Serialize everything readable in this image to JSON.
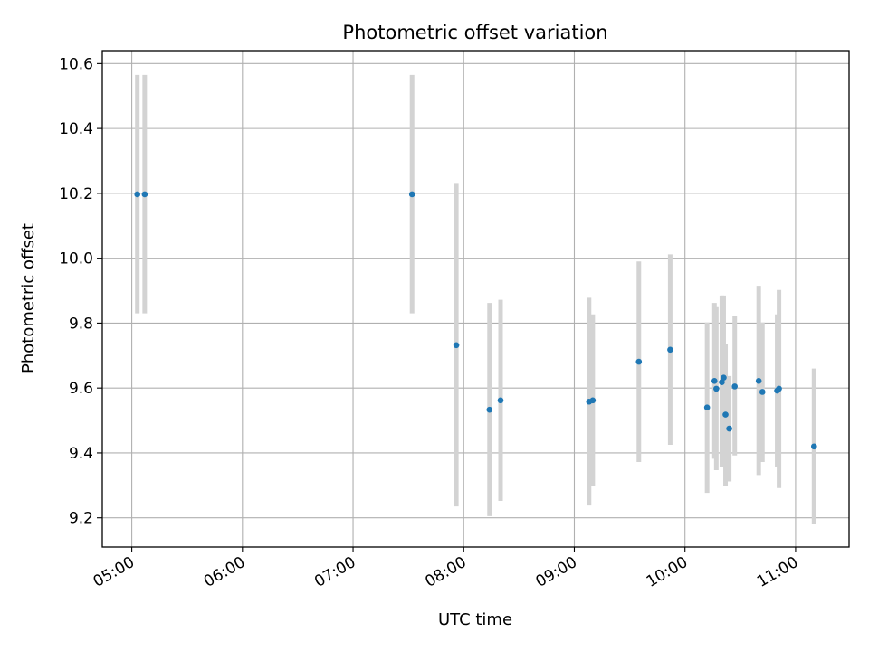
{
  "chart_data": {
    "type": "scatter",
    "title": "Photometric offset variation",
    "xlabel": "UTC time",
    "ylabel": "Photometric offset",
    "x_ticks": [
      "05:00",
      "06:00",
      "07:00",
      "08:00",
      "09:00",
      "10:00",
      "11:00"
    ],
    "y_ticks": [
      "9.2",
      "9.4",
      "9.6",
      "9.8",
      "10.0",
      "10.2",
      "10.4",
      "10.6"
    ],
    "xlim": [
      "04:44",
      "11:29"
    ],
    "ylim": [
      9.11,
      10.64
    ],
    "grid": true,
    "point_color": "#1f77b4",
    "errorbar_color": "#d3d3d3",
    "points": [
      {
        "x": "05:03",
        "y": 10.197,
        "ylow": 9.83,
        "yhigh": 10.565
      },
      {
        "x": "05:07",
        "y": 10.197,
        "ylow": 9.83,
        "yhigh": 10.565
      },
      {
        "x": "07:32",
        "y": 10.197,
        "ylow": 9.83,
        "yhigh": 10.565
      },
      {
        "x": "07:56",
        "y": 9.732,
        "ylow": 9.235,
        "yhigh": 10.232
      },
      {
        "x": "08:14",
        "y": 9.533,
        "ylow": 9.205,
        "yhigh": 9.862
      },
      {
        "x": "08:20",
        "y": 9.562,
        "ylow": 9.252,
        "yhigh": 9.872
      },
      {
        "x": "09:08",
        "y": 9.558,
        "ylow": 9.238,
        "yhigh": 9.878
      },
      {
        "x": "09:10",
        "y": 9.562,
        "ylow": 9.297,
        "yhigh": 9.827
      },
      {
        "x": "09:35",
        "y": 9.681,
        "ylow": 9.372,
        "yhigh": 9.99
      },
      {
        "x": "09:52",
        "y": 9.718,
        "ylow": 9.425,
        "yhigh": 10.012
      },
      {
        "x": "10:12",
        "y": 9.54,
        "ylow": 9.277,
        "yhigh": 9.802
      },
      {
        "x": "10:16",
        "y": 9.622,
        "ylow": 9.382,
        "yhigh": 9.862
      },
      {
        "x": "10:17",
        "y": 9.598,
        "ylow": 9.347,
        "yhigh": 9.852
      },
      {
        "x": "10:20",
        "y": 9.618,
        "ylow": 9.357,
        "yhigh": 9.885
      },
      {
        "x": "10:21",
        "y": 9.632,
        "ylow": 9.382,
        "yhigh": 9.885
      },
      {
        "x": "10:22",
        "y": 9.518,
        "ylow": 9.297,
        "yhigh": 9.737
      },
      {
        "x": "10:24",
        "y": 9.475,
        "ylow": 9.312,
        "yhigh": 9.637
      },
      {
        "x": "10:27",
        "y": 9.605,
        "ylow": 9.392,
        "yhigh": 9.822
      },
      {
        "x": "10:40",
        "y": 9.622,
        "ylow": 9.332,
        "yhigh": 9.915
      },
      {
        "x": "10:42",
        "y": 9.588,
        "ylow": 9.372,
        "yhigh": 9.802
      },
      {
        "x": "10:50",
        "y": 9.592,
        "ylow": 9.357,
        "yhigh": 9.827
      },
      {
        "x": "10:51",
        "y": 9.598,
        "ylow": 9.292,
        "yhigh": 9.902
      },
      {
        "x": "11:10",
        "y": 9.42,
        "ylow": 9.18,
        "yhigh": 9.66
      }
    ]
  }
}
